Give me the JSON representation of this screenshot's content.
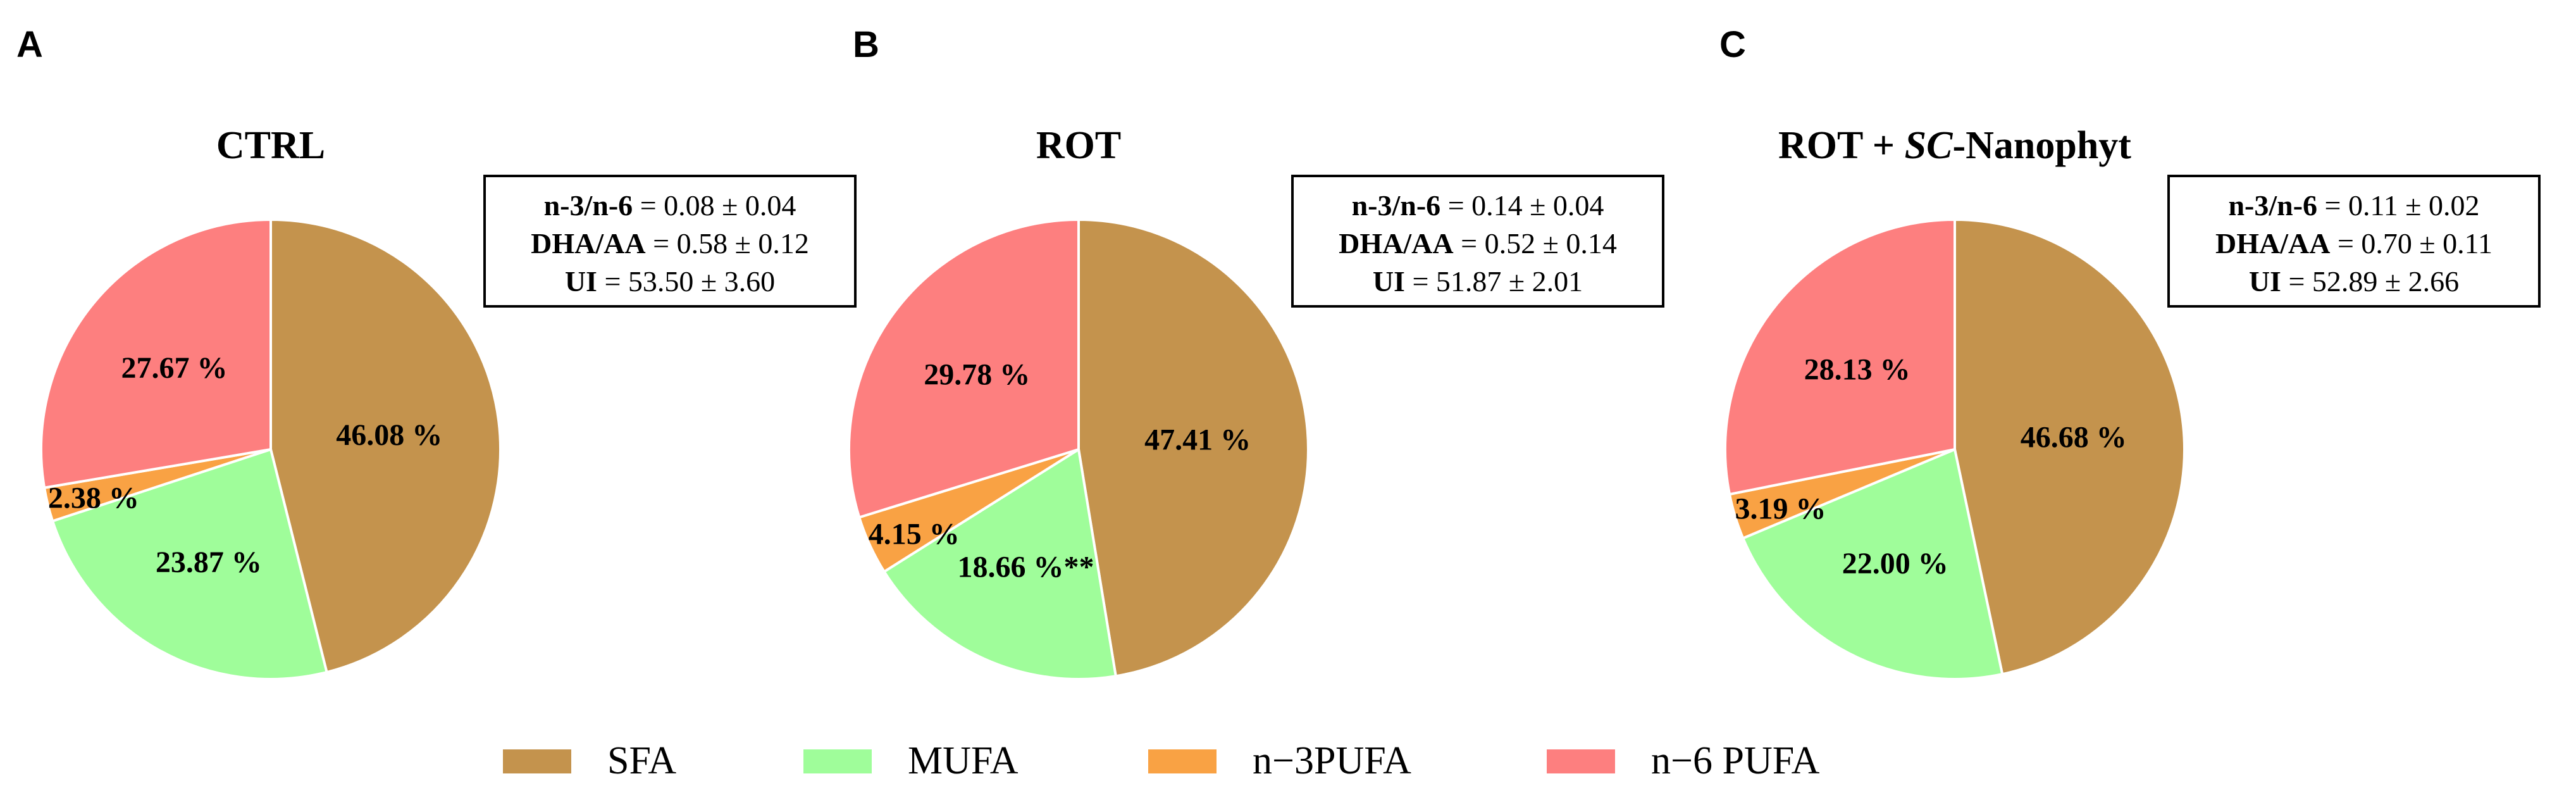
{
  "figure": {
    "legend": [
      {
        "label": "SFA",
        "color": "#c4934d"
      },
      {
        "label": "MUFA",
        "color": "#9ffd9a"
      },
      {
        "label": "n−3PUFA",
        "color": "#f9a244"
      },
      {
        "label": "n−6 PUFA",
        "color": "#fd7f7f"
      }
    ]
  },
  "chart_data": [
    {
      "type": "pie",
      "panel_letter": "A",
      "title": "CTRL",
      "title_parts": [
        {
          "text": "CTRL",
          "italic": false
        }
      ],
      "categories": [
        "SFA",
        "MUFA",
        "n−3PUFA",
        "n−6 PUFA"
      ],
      "values": [
        46.08,
        23.87,
        2.38,
        27.67
      ],
      "labels": [
        "46.08 %",
        "23.87 %",
        "2.38 %",
        "27.67 %"
      ],
      "colors": [
        "#c4934d",
        "#9ffd9a",
        "#f9a244",
        "#fd7f7f"
      ],
      "start_angle_deg": 90,
      "direction": "clockwise",
      "stats": [
        {
          "name": "n-3/n-6",
          "value": "= 0.08 ± 0.04"
        },
        {
          "name": "DHA/AA",
          "value": "= 0.58 ± 0.12"
        },
        {
          "name": "UI",
          "value": "= 53.50 ± 3.60"
        }
      ]
    },
    {
      "type": "pie",
      "panel_letter": "B",
      "title": "ROT",
      "title_parts": [
        {
          "text": "ROT",
          "italic": false
        }
      ],
      "categories": [
        "SFA",
        "MUFA",
        "n−3PUFA",
        "n−6 PUFA"
      ],
      "values": [
        47.41,
        18.66,
        4.15,
        29.78
      ],
      "labels": [
        "47.41 %",
        "18.66 %**",
        "4.15 %",
        "29.78 %"
      ],
      "colors": [
        "#c4934d",
        "#9ffd9a",
        "#f9a244",
        "#fd7f7f"
      ],
      "start_angle_deg": 90,
      "direction": "clockwise",
      "stats": [
        {
          "name": "n-3/n-6",
          "value": "= 0.14 ± 0.04"
        },
        {
          "name": "DHA/AA",
          "value": "= 0.52 ± 0.14"
        },
        {
          "name": "UI",
          "value": "= 51.87 ± 2.01"
        }
      ]
    },
    {
      "type": "pie",
      "panel_letter": "C",
      "title": "ROT + SC-Nanophyt",
      "title_parts": [
        {
          "text": "ROT + ",
          "italic": false
        },
        {
          "text": "SC",
          "italic": true
        },
        {
          "text": "-Nanophyt",
          "italic": false
        }
      ],
      "categories": [
        "SFA",
        "MUFA",
        "n−3PUFA",
        "n−6 PUFA"
      ],
      "values": [
        46.68,
        22.0,
        3.19,
        28.13
      ],
      "labels": [
        "46.68 %",
        "22.00 %",
        "3.19 %",
        "28.13 %"
      ],
      "colors": [
        "#c4934d",
        "#9ffd9a",
        "#f9a244",
        "#fd7f7f"
      ],
      "start_angle_deg": 90,
      "direction": "clockwise",
      "stats": [
        {
          "name": "n-3/n-6",
          "value": "= 0.11 ± 0.02"
        },
        {
          "name": "DHA/AA",
          "value": "= 0.70 ± 0.11"
        },
        {
          "name": "UI",
          "value": "= 52.89 ± 2.66"
        }
      ]
    }
  ]
}
